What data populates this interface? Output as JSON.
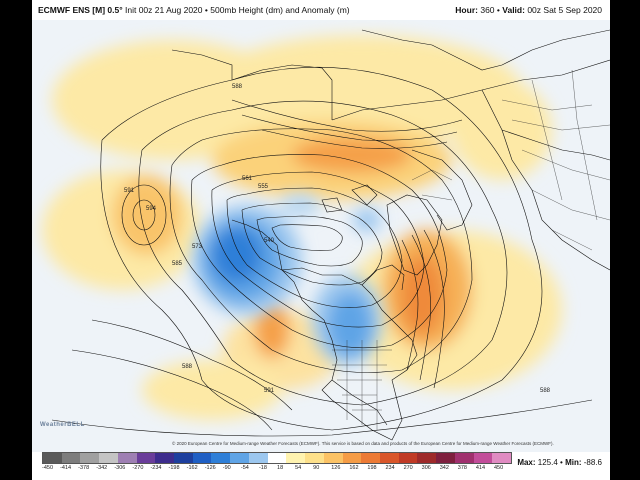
{
  "header": {
    "model": "ECMWF ENS [M] 0.5°",
    "init": "Init 00z 21 Aug 2020",
    "field": "500mb Height (dm) and Anomaly (m)",
    "hour_label": "Hour:",
    "hour": "360",
    "valid_label": "Valid:",
    "valid": "00z Sat 5 Sep 2020"
  },
  "contour_labels": [
    "588",
    "591",
    "594",
    "585",
    "573",
    "561",
    "555",
    "540",
    "588",
    "591",
    "588"
  ],
  "colorbar": {
    "ticks": [
      "-450",
      "-414",
      "-378",
      "-342",
      "-306",
      "-270",
      "-234",
      "-198",
      "-162",
      "-126",
      "-90",
      "-54",
      "-18",
      "18",
      "54",
      "90",
      "126",
      "162",
      "198",
      "234",
      "270",
      "306",
      "342",
      "378",
      "414",
      "450"
    ],
    "colors": [
      "#5a5a5a",
      "#7d7d7d",
      "#a0a0a0",
      "#c4c4c4",
      "#9e7fb3",
      "#6a3d9a",
      "#3d2c8d",
      "#1d3f9e",
      "#1f5fc4",
      "#2e7fd8",
      "#5fa4e6",
      "#9cc7ef",
      "#ffffff",
      "#fff3b0",
      "#fde08a",
      "#fbc265",
      "#f59c46",
      "#ec7a35",
      "#d9562a",
      "#c03a25",
      "#9e2a2a",
      "#7e1f3e",
      "#a0306e",
      "#c24d9a",
      "#e08bc2"
    ]
  },
  "stats": {
    "max_label": "Max:",
    "max": "125.4",
    "min_label": "Min:",
    "min": "-88.6"
  },
  "credit": "© 2020 European Centre for Medium-range Weather Forecasts (ECMWF). This service is based on data and products of the European Centre for Medium-range Weather Forecasts (ECMWF).",
  "logo": "WeatherBELL"
}
